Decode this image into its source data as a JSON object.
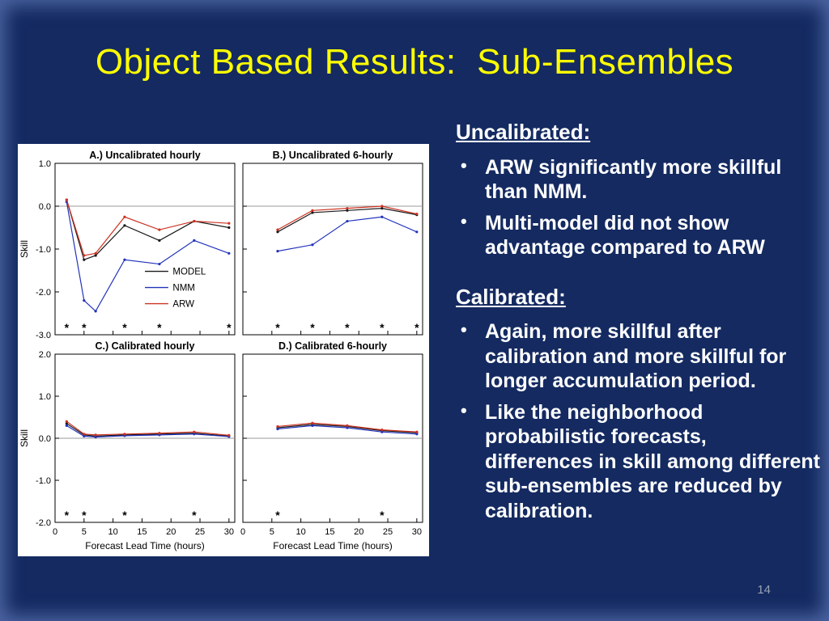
{
  "slide": {
    "title": "Object Based Results:  Sub-Ensembles",
    "page_number": "14",
    "background_color": "#142a61",
    "title_color": "#ffff00"
  },
  "notes": {
    "uncalibrated_heading": "Uncalibrated:",
    "uncalibrated_bullets": [
      "ARW significantly more skillful than NMM.",
      "Multi-model did not show advantage compared to ARW"
    ],
    "calibrated_heading": "Calibrated:",
    "calibrated_bullets": [
      "Again, more skillful after calibration and more skillful for longer accumulation period.",
      "Like the neighborhood probabilistic forecasts, differences in skill among different sub-ensembles are reduced by calibration."
    ]
  },
  "chart_data": {
    "type": "line",
    "xlabel": "Forecast Lead Time (hours)",
    "ylabel": "Skill",
    "legend": [
      "MODEL",
      "NMM",
      "ARW"
    ],
    "series_colors": {
      "MODEL": "#1a1a1a",
      "NMM": "#2233bb",
      "ARW": "#cc3322"
    },
    "panels": [
      {
        "title": "A.) Uncalibrated hourly",
        "xlim": [
          0,
          31
        ],
        "ylim": [
          -3.0,
          1.0
        ],
        "xticks": [
          0,
          5,
          10,
          15,
          20,
          25,
          30
        ],
        "yticks": [
          1.0,
          0.0,
          -1.0,
          -2.0,
          -3.0
        ],
        "x": [
          2,
          5,
          7,
          12,
          18,
          24,
          30
        ],
        "series": [
          {
            "name": "MODEL",
            "values": [
              0.15,
              -1.25,
              -1.15,
              -0.45,
              -0.8,
              -0.35,
              -0.5
            ]
          },
          {
            "name": "NMM",
            "values": [
              0.1,
              -2.2,
              -2.45,
              -1.25,
              -1.35,
              -0.8,
              -1.1
            ]
          },
          {
            "name": "ARW",
            "values": [
              0.15,
              -1.15,
              -1.1,
              -0.25,
              -0.55,
              -0.35,
              -0.4
            ]
          }
        ],
        "significance_x": [
          2,
          5,
          12,
          18,
          30
        ],
        "show_legend": true
      },
      {
        "title": "B.) Uncalibrated 6-hourly",
        "xlim": [
          0,
          31
        ],
        "ylim": [
          -3.0,
          1.0
        ],
        "xticks": [
          0,
          5,
          10,
          15,
          20,
          25,
          30
        ],
        "yticks": [
          1.0,
          0.0,
          -1.0,
          -2.0,
          -3.0
        ],
        "x": [
          6,
          12,
          18,
          24,
          30
        ],
        "series": [
          {
            "name": "MODEL",
            "values": [
              -0.6,
              -0.15,
              -0.1,
              -0.05,
              -0.2
            ]
          },
          {
            "name": "NMM",
            "values": [
              -1.05,
              -0.9,
              -0.35,
              -0.25,
              -0.6
            ]
          },
          {
            "name": "ARW",
            "values": [
              -0.55,
              -0.1,
              -0.05,
              0.0,
              -0.18
            ]
          }
        ],
        "significance_x": [
          6,
          12,
          18,
          24,
          30
        ],
        "show_legend": false
      },
      {
        "title": "C.) Calibrated hourly",
        "xlim": [
          0,
          31
        ],
        "ylim": [
          -2.0,
          2.0
        ],
        "xticks": [
          0,
          5,
          10,
          15,
          20,
          25,
          30
        ],
        "yticks": [
          2.0,
          1.0,
          0.0,
          -1.0,
          -2.0
        ],
        "x": [
          2,
          5,
          7,
          12,
          18,
          24,
          30
        ],
        "series": [
          {
            "name": "MODEL",
            "values": [
              0.35,
              0.08,
              0.05,
              0.08,
              0.1,
              0.12,
              0.05
            ]
          },
          {
            "name": "NMM",
            "values": [
              0.3,
              0.05,
              0.03,
              0.06,
              0.08,
              0.1,
              0.04
            ]
          },
          {
            "name": "ARW",
            "values": [
              0.4,
              0.1,
              0.08,
              0.1,
              0.12,
              0.15,
              0.07
            ]
          }
        ],
        "significance_x": [
          2,
          5,
          12,
          24
        ],
        "show_legend": false
      },
      {
        "title": "D.) Calibrated 6-hourly",
        "xlim": [
          0,
          31
        ],
        "ylim": [
          -2.0,
          2.0
        ],
        "xticks": [
          0,
          5,
          10,
          15,
          20,
          25,
          30
        ],
        "yticks": [
          2.0,
          1.0,
          0.0,
          -1.0,
          -2.0
        ],
        "x": [
          6,
          12,
          18,
          24,
          30
        ],
        "series": [
          {
            "name": "MODEL",
            "values": [
              0.25,
              0.33,
              0.28,
              0.18,
              0.13
            ]
          },
          {
            "name": "NMM",
            "values": [
              0.22,
              0.3,
              0.25,
              0.15,
              0.1
            ]
          },
          {
            "name": "ARW",
            "values": [
              0.28,
              0.36,
              0.3,
              0.2,
              0.15
            ]
          }
        ],
        "significance_x": [
          6,
          24
        ],
        "show_legend": false
      }
    ]
  }
}
